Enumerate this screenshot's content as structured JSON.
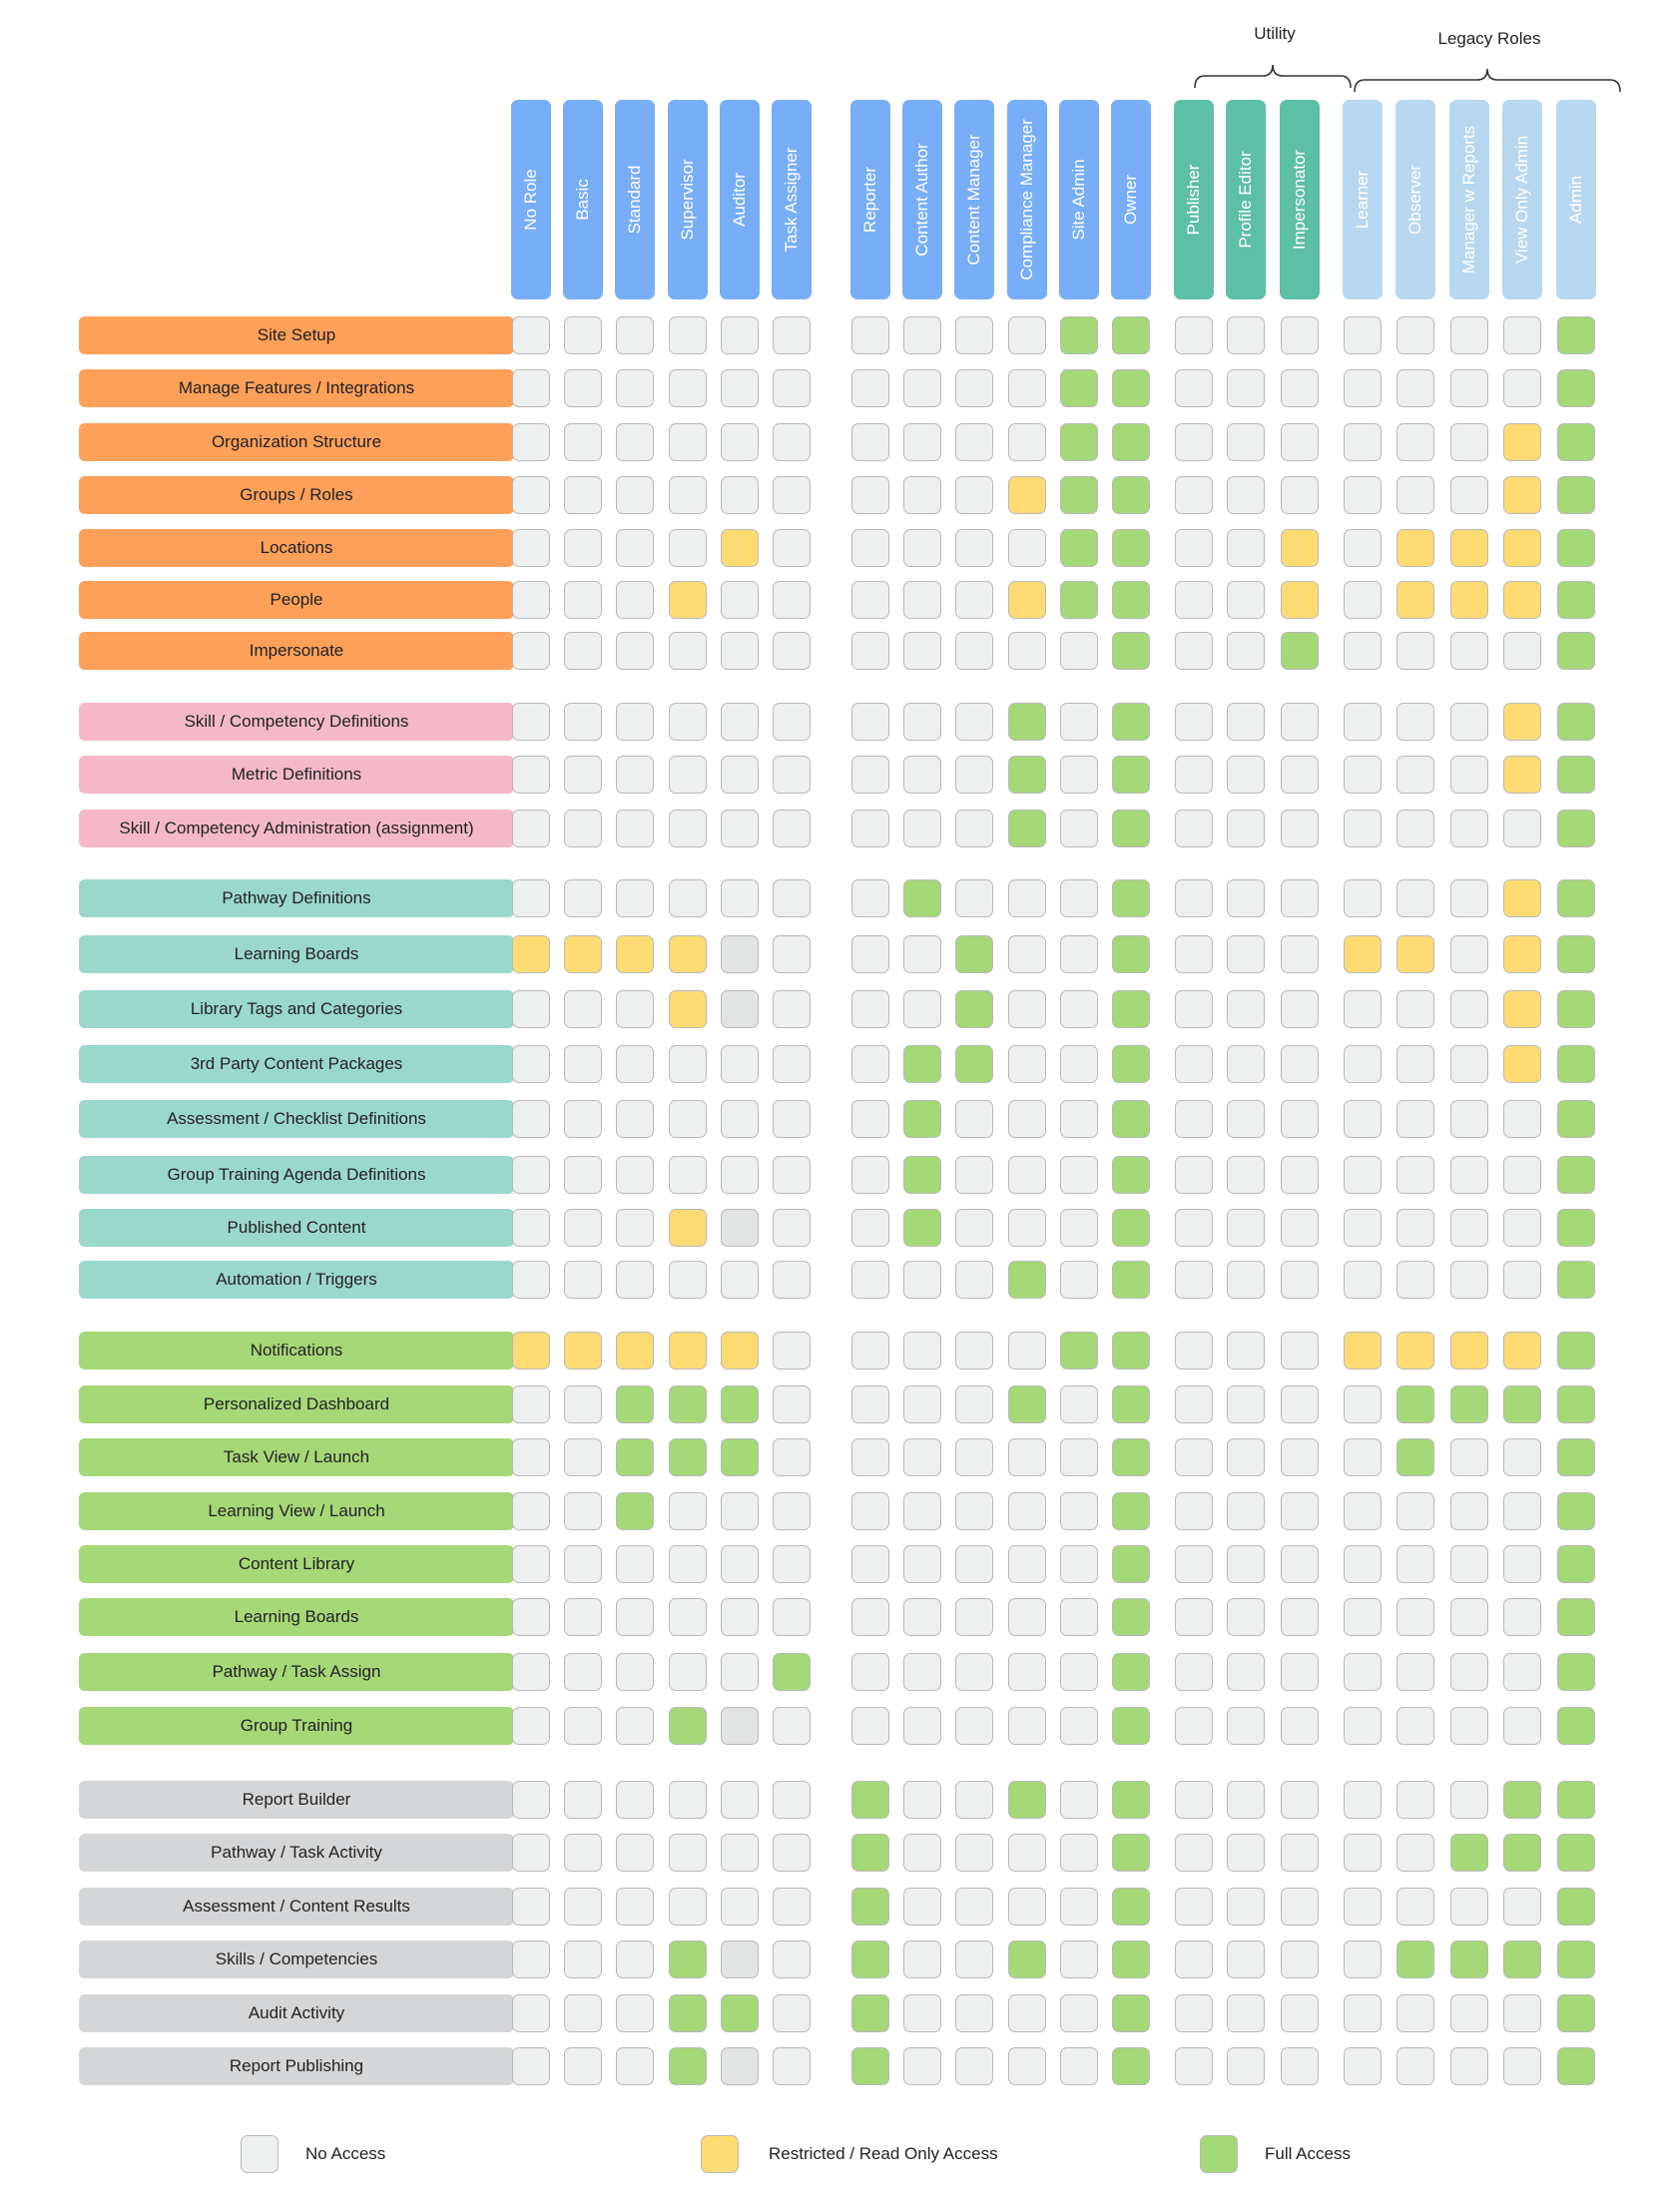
{
  "colors": {
    "state": {
      "N": "#eeefef",
      "R": "#ffdb74",
      "F": "#a5d877",
      "D": "#e2e3e3"
    },
    "column": {
      "blue": "#77aef7",
      "teal": "#5dbfa5",
      "light": "#b7d8f0"
    },
    "section": {
      "orange": "#fda05a",
      "pink": "#f5b8c9",
      "teal": "#9ad8cc",
      "green": "#a5d877",
      "gray": "#d5d6d7"
    }
  },
  "groups": [
    {
      "label": "Utility"
    },
    {
      "label": "Legacy Roles"
    }
  ],
  "columns": [
    {
      "label": "No Role",
      "color": "blue"
    },
    {
      "label": "Basic",
      "color": "blue"
    },
    {
      "label": "Standard",
      "color": "blue"
    },
    {
      "label": "Supervisor",
      "color": "blue"
    },
    {
      "label": "Auditor",
      "color": "blue"
    },
    {
      "label": "Task Assigner",
      "color": "blue"
    },
    {
      "label": "Reporter",
      "color": "blue"
    },
    {
      "label": "Content Author",
      "color": "blue"
    },
    {
      "label": "Content Manager",
      "color": "blue"
    },
    {
      "label": "Compliance Manager",
      "color": "blue"
    },
    {
      "label": "Site Admin",
      "color": "blue"
    },
    {
      "label": "Owner",
      "color": "blue"
    },
    {
      "label": "Publisher",
      "color": "teal"
    },
    {
      "label": "Profile Editor",
      "color": "teal"
    },
    {
      "label": "Impersonator",
      "color": "teal"
    },
    {
      "label": "Learner",
      "color": "light"
    },
    {
      "label": "Observer",
      "color": "light"
    },
    {
      "label": "Manager w Reports",
      "color": "light"
    },
    {
      "label": "View Only Admin",
      "color": "light"
    },
    {
      "label": "Admin",
      "color": "light"
    }
  ],
  "sections": [
    {
      "color": "orange",
      "rows": [
        {
          "label": "Site Setup",
          "cells": "NNNNNNNNNNFFNNNNNNNF"
        },
        {
          "label": "Manage Features / Integrations",
          "cells": "NNNNNNNNNNFFNNNNNNNF"
        },
        {
          "label": "Organization Structure",
          "cells": "NNNNNNNNNNFFNNNNNNRF"
        },
        {
          "label": "Groups / Roles",
          "cells": "NNNNNNNNNRFFNNNNNNRF"
        },
        {
          "label": "Locations",
          "cells": "NNNNRNNNNNFFNNRNRRRF"
        },
        {
          "label": "People",
          "cells": "NNNRNNNNNRFFNNRNRRRF"
        },
        {
          "label": "Impersonate",
          "cells": "NNNNNNNNNNNFNNFNNNNF"
        }
      ]
    },
    {
      "color": "pink",
      "rows": [
        {
          "label": "Skill / Competency Definitions",
          "cells": "NNNNNNNNNFNFNNNNNNRF"
        },
        {
          "label": "Metric Definitions",
          "cells": "NNNNNNNNNFNFNNNNNNRF"
        },
        {
          "label": "Skill / Competency Administration (assignment)",
          "cells": "NNNNNNNNNFNFNNNNNNNF"
        }
      ]
    },
    {
      "color": "teal",
      "rows": [
        {
          "label": "Pathway Definitions",
          "cells": "NNNNNNNFNNNFNNNNNNRF"
        },
        {
          "label": "Learning Boards",
          "cells": "RRRRDNNNFNNFNNNRRNRF"
        },
        {
          "label": "Library Tags and Categories",
          "cells": "NNNRDNNNFNNFNNNNNNRF"
        },
        {
          "label": "3rd Party Content Packages",
          "cells": "NNNNNNNFFNNFNNNNNNRF"
        },
        {
          "label": "Assessment / Checklist Definitions",
          "cells": "NNNNNNNFNNNFNNNNNNNF"
        },
        {
          "label": "Group Training Agenda Definitions",
          "cells": "NNNNNNNFNNNFNNNNNNNF"
        },
        {
          "label": "Published Content",
          "cells": "NNNRDNNFNNNFNNNNNNNF"
        },
        {
          "label": "Automation / Triggers",
          "cells": "NNNNNNNNNFNFNNNNNNNF"
        }
      ]
    },
    {
      "color": "green",
      "rows": [
        {
          "label": "Notifications",
          "cells": "RRRRRNNNNNFFNNNRRRRF"
        },
        {
          "label": "Personalized Dashboard",
          "cells": "NNFFFNNNNFNFNNNNFFFF"
        },
        {
          "label": "Task View / Launch",
          "cells": "NNFFFNNNNNNFNNNNFNNF"
        },
        {
          "label": "Learning View / Launch",
          "cells": "NNFNNNNNNNNFNNNNNNNF"
        },
        {
          "label": "Content Library",
          "cells": "NNNNNNNNNNNFNNNNNNNF"
        },
        {
          "label": "Learning Boards",
          "cells": "NNNNNNNNNNNFNNNNNNNF"
        },
        {
          "label": "Pathway / Task Assign",
          "cells": "NNNNNFNNNNNFNNNNNNNF"
        },
        {
          "label": "Group Training",
          "cells": "NNNFDNNNNNNFNNNNNNNF"
        }
      ]
    },
    {
      "color": "gray",
      "rows": [
        {
          "label": "Report Builder",
          "cells": "NNNNNNFNNFNFNNNNNNFF"
        },
        {
          "label": "Pathway / Task Activity",
          "cells": "NNNNNNFNNNNFNNNNNFFF"
        },
        {
          "label": "Assessment / Content Results",
          "cells": "NNNNNNFNNNNFNNNNNNNF"
        },
        {
          "label": "Skills / Competencies",
          "cells": "NNNFDNFNNFNFNNNNFFFF"
        },
        {
          "label": "Audit Activity",
          "cells": "NNNFFNFNNNNFNNNNNNNF"
        },
        {
          "label": "Report Publishing",
          "cells": "NNNFDNFNNNNFNNNNNNNF"
        }
      ]
    }
  ],
  "legend": [
    {
      "state": "N",
      "label": "No Access"
    },
    {
      "state": "R",
      "label": "Restricted / Read Only Access"
    },
    {
      "state": "F",
      "label": "Full Access"
    }
  ]
}
